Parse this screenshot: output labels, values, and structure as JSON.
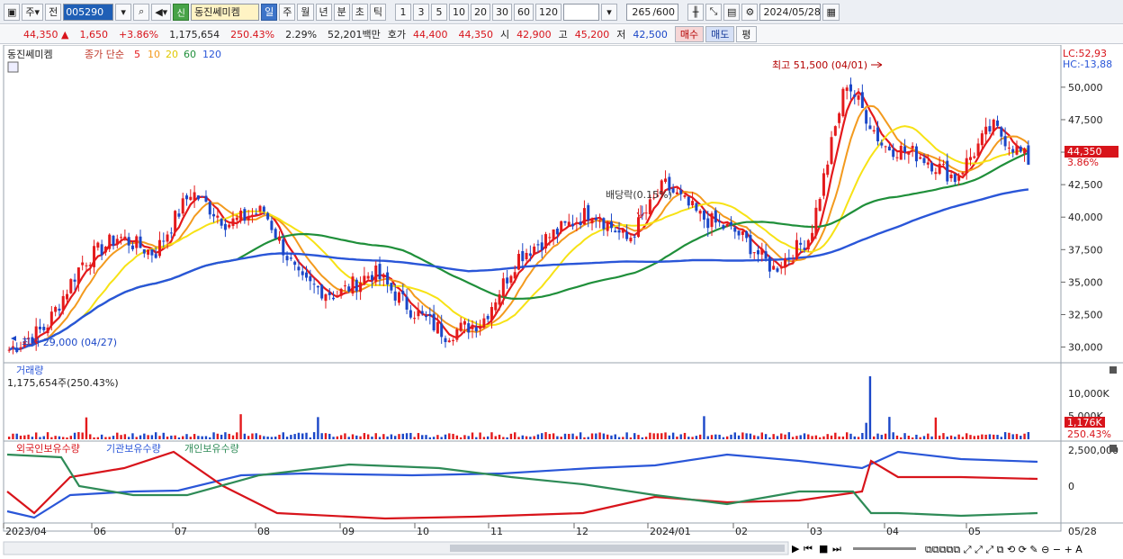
{
  "toolbar": {
    "market": "주",
    "prev": "전",
    "code": "005290",
    "sin": "신",
    "name": "동진쎄미켐",
    "periods": [
      "일",
      "주",
      "월",
      "년",
      "분",
      "초",
      "틱"
    ],
    "active_period": "일",
    "intervals": [
      "1",
      "3",
      "5",
      "10",
      "20",
      "30",
      "60",
      "120"
    ],
    "count": "265",
    "count_total": "/600",
    "date": "2024/05/28"
  },
  "quote": {
    "price": "44,350",
    "change": "1,650",
    "change_pct": "+3.86%",
    "volume": "1,175,654",
    "volume_ratio": "250.43%",
    "turnover": "2.29%",
    "amount": "52,201백만",
    "bid_label": "호가",
    "bid_ask": "44,400",
    "bid_bid": "44,350",
    "open_label": "시",
    "open": "42,900",
    "high_label": "고",
    "high": "45,200",
    "low_label": "저",
    "low": "42,500",
    "buy_label": "매수",
    "sell_label": "매도",
    "avg_label": "평"
  },
  "price_panel": {
    "name": "동진쎄미켐",
    "ma_label": "종가 단순",
    "ma_periods": [
      "5",
      "10",
      "20",
      "60",
      "120"
    ],
    "ma_colors": [
      "#e41a1c",
      "#f39a1e",
      "#f7e215",
      "#1f8f3a",
      "#2a56d8"
    ],
    "lc": "LC:52,93",
    "hc": "HC:-13,88",
    "high_annotation": "최고 51,500 (04/01)",
    "low_annotation": "최저 29,000 (04/27)",
    "dividend_annotation": "배당락(0.15%)",
    "current_tag": "44,350",
    "current_pct": "3.86%",
    "y_ticks": [
      "50,000",
      "47,500",
      "45,000",
      "42,500",
      "40,000",
      "37,500",
      "35,000",
      "32,500",
      "30,000"
    ]
  },
  "volume_panel": {
    "label": "거래량",
    "value": "1,175,654주(250.43%)",
    "y_ticks": [
      "10,000K",
      "5,000K"
    ],
    "current_tag": "1,176K",
    "current_pct": "250.43%"
  },
  "holdings_panel": {
    "labels": [
      "외국인보유수량",
      "기관보유수량",
      "개인보유수량"
    ],
    "colors": [
      "#2a56d8",
      "#d8141b",
      "#2e8b57"
    ],
    "y_ticks": [
      "2,500,000",
      "0"
    ]
  },
  "x_axis": {
    "labels": [
      "2023/04",
      "06",
      "07",
      "08",
      "09",
      "10",
      "11",
      "12",
      "2024/01",
      "02",
      "03",
      "04",
      "05"
    ],
    "last_label": "05/28"
  },
  "chart_data": {
    "type": "candlestick",
    "title": "",
    "ylim": [
      29000,
      52000
    ],
    "dates_first": "2023/04",
    "dates_last": "2024/05/28",
    "close_approx": [
      29800,
      31500,
      36500,
      38500,
      37200,
      42000,
      39500,
      40500,
      35000,
      34000,
      35800,
      33000,
      31000,
      32000,
      37000,
      38800,
      40500,
      38200,
      42500,
      40000,
      38800,
      36000,
      38500,
      50500,
      45500,
      44800,
      43000,
      47000,
      44350
    ],
    "events": {
      "high": {
        "value": 51500,
        "date": "04/01"
      },
      "low": {
        "value": 29000,
        "date": "04/27"
      }
    }
  }
}
